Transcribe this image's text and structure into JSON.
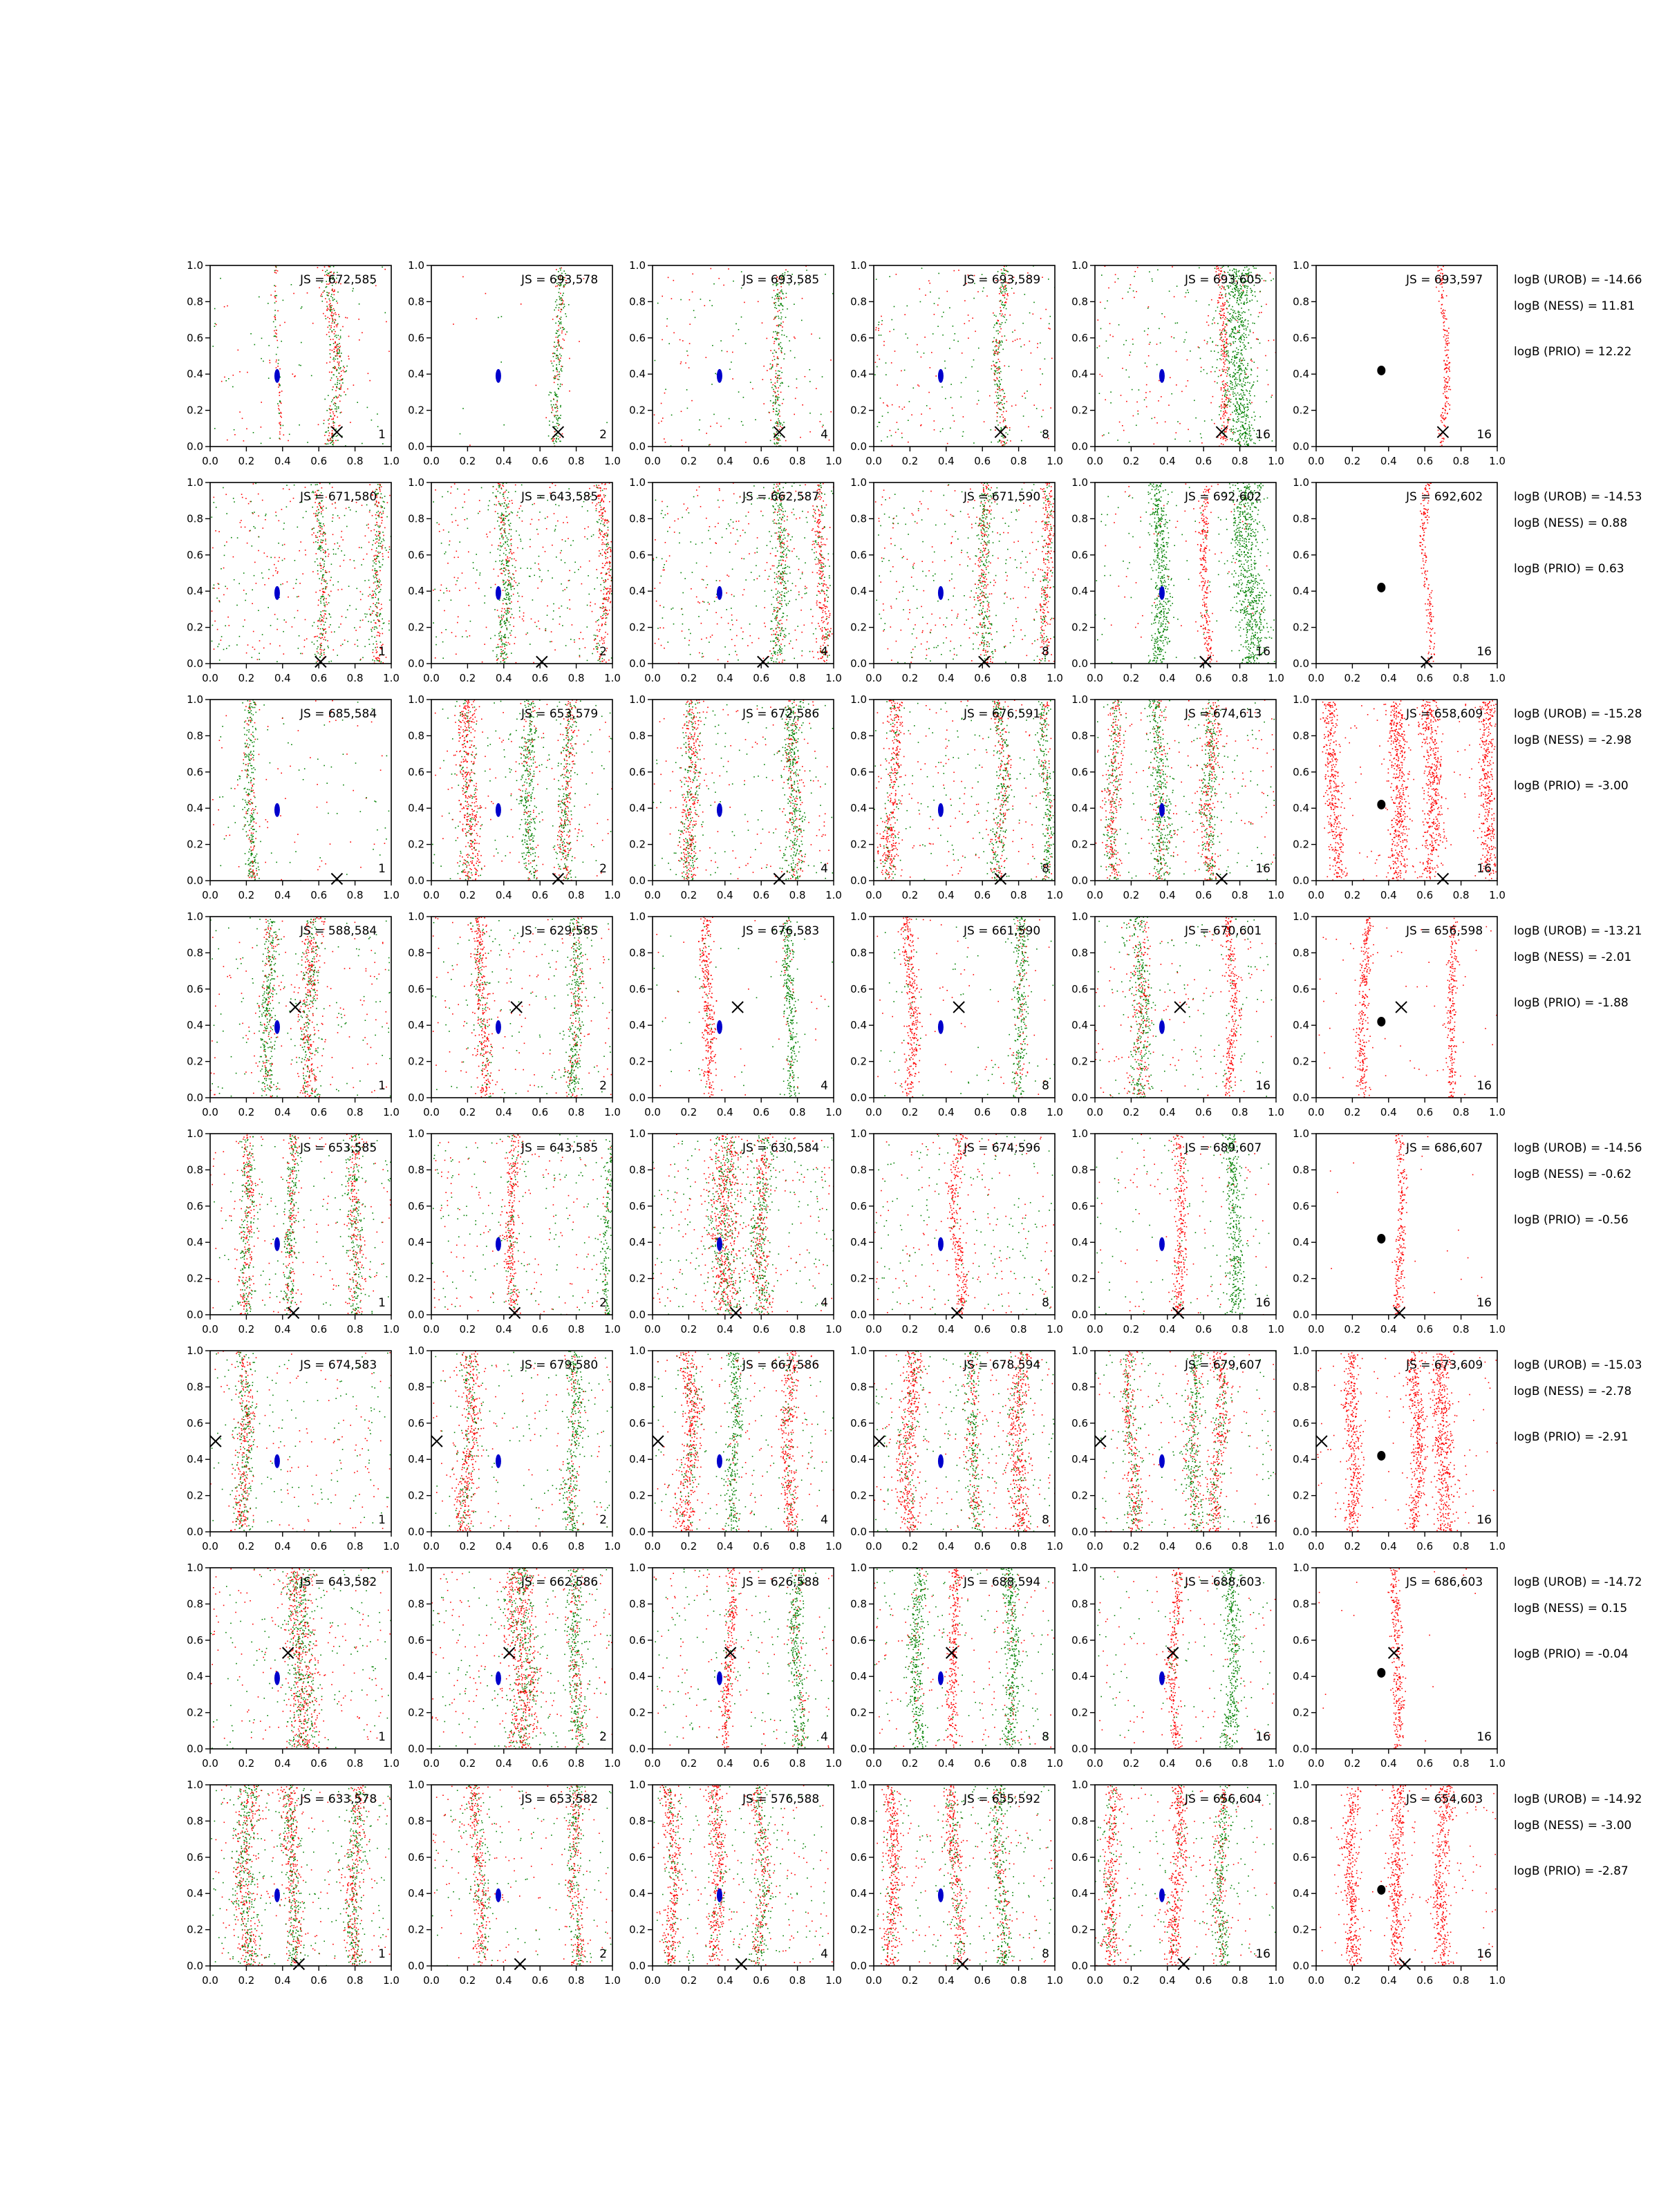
{
  "figure": {
    "tick_labels": [
      "0.0",
      "0.2",
      "0.4",
      "0.6",
      "0.8",
      "1.0"
    ],
    "colors": {
      "red_points": "#ff0000",
      "green_points": "#008000",
      "blue_cluster": "#0000cc",
      "black_cluster": "#000000",
      "frame": "#000000"
    },
    "point_size": "single-pixel dots",
    "marker_x_symbol": "x-marker"
  },
  "chart_data": [
    {
      "type": "scatter-grid-row",
      "row": 1,
      "x_marker": [
        0.7,
        0.08
      ],
      "panels": [
        {
          "js": "JS = 672,585",
          "n": "1",
          "bands": [
            {
              "x": 0.68,
              "w": 0.04,
              "mix": 0.5
            },
            {
              "x": 0.37,
              "w": 0.01,
              "mix": 0.5
            }
          ],
          "bg": 0.2
        },
        {
          "js": "JS = 693,578",
          "n": "2",
          "bands": [
            {
              "x": 0.7,
              "w": 0.03,
              "mix": 0.3
            }
          ],
          "bg": 0.03
        },
        {
          "js": "JS = 693,585",
          "n": "4",
          "bands": [
            {
              "x": 0.69,
              "w": 0.03,
              "mix": 0.35
            }
          ],
          "bg": 0.25
        },
        {
          "js": "JS = 693,589",
          "n": "8",
          "bands": [
            {
              "x": 0.7,
              "w": 0.03,
              "mix": 0.4
            }
          ],
          "bg": 0.4
        },
        {
          "js": "JS = 693,605",
          "n": "16",
          "bands": [
            {
              "x": 0.7,
              "w": 0.025,
              "mix": 0.95
            },
            {
              "x": 0.8,
              "w": 0.08,
              "mix": 0.0
            }
          ],
          "bg": 0.4
        },
        {
          "js": "JS = 693,597",
          "n": "16",
          "bands": [
            {
              "x": 0.7,
              "w": 0.02,
              "mix": 1.0
            }
          ],
          "bg": 0.0
        }
      ],
      "logB": [
        "logB (UROB) = -14.66",
        "logB (NESS) = 11.81",
        "logB (PRIO) = 12.22"
      ]
    },
    {
      "type": "scatter-grid-row",
      "row": 2,
      "x_marker": [
        0.61,
        0.01
      ],
      "panels": [
        {
          "js": "JS = 671,580",
          "n": "1",
          "bands": [
            {
              "x": 0.6,
              "w": 0.03,
              "mix": 0.5
            },
            {
              "x": 0.93,
              "w": 0.03,
              "mix": 0.5
            }
          ],
          "bg": 0.6
        },
        {
          "js": "JS = 643,585",
          "n": "2",
          "bands": [
            {
              "x": 0.4,
              "w": 0.04,
              "mix": 0.3
            },
            {
              "x": 0.95,
              "w": 0.03,
              "mix": 0.8
            }
          ],
          "bg": 0.6
        },
        {
          "js": "JS = 662,587",
          "n": "4",
          "bands": [
            {
              "x": 0.7,
              "w": 0.04,
              "mix": 0.3
            },
            {
              "x": 0.93,
              "w": 0.03,
              "mix": 0.8
            }
          ],
          "bg": 0.6
        },
        {
          "js": "JS = 671,590",
          "n": "8",
          "bands": [
            {
              "x": 0.62,
              "w": 0.04,
              "mix": 0.4
            },
            {
              "x": 0.95,
              "w": 0.03,
              "mix": 0.8
            }
          ],
          "bg": 0.6
        },
        {
          "js": "JS = 692,602",
          "n": "16",
          "bands": [
            {
              "x": 0.61,
              "w": 0.025,
              "mix": 0.95
            },
            {
              "x": 0.85,
              "w": 0.08,
              "mix": 0.0
            },
            {
              "x": 0.35,
              "w": 0.05,
              "mix": 0.0
            }
          ],
          "bg": 0.2
        },
        {
          "js": "JS = 692,602",
          "n": "16",
          "bands": [
            {
              "x": 0.61,
              "w": 0.02,
              "mix": 1.0
            }
          ],
          "bg": 0.0
        }
      ],
      "logB": [
        "logB (UROB) = -14.53",
        "logB (NESS) = 0.88",
        "logB (PRIO) = 0.63"
      ]
    },
    {
      "type": "scatter-grid-row",
      "row": 3,
      "x_marker": [
        0.7,
        0.01
      ],
      "panels": [
        {
          "js": "JS = 685,584",
          "n": "1",
          "bands": [
            {
              "x": 0.22,
              "w": 0.035,
              "mix": 0.3
            }
          ],
          "bg": 0.2
        },
        {
          "js": "JS = 653,579",
          "n": "2",
          "bands": [
            {
              "x": 0.2,
              "w": 0.05,
              "mix": 0.8
            },
            {
              "x": 0.55,
              "w": 0.04,
              "mix": 0.2
            },
            {
              "x": 0.75,
              "w": 0.04,
              "mix": 0.5
            }
          ],
          "bg": 0.4
        },
        {
          "js": "JS = 672,586",
          "n": "4",
          "bands": [
            {
              "x": 0.2,
              "w": 0.05,
              "mix": 0.6
            },
            {
              "x": 0.78,
              "w": 0.05,
              "mix": 0.3
            }
          ],
          "bg": 0.4
        },
        {
          "js": "JS = 676,591",
          "n": "8",
          "bands": [
            {
              "x": 0.1,
              "w": 0.04,
              "mix": 0.8
            },
            {
              "x": 0.7,
              "w": 0.04,
              "mix": 0.4
            },
            {
              "x": 0.95,
              "w": 0.03,
              "mix": 0.2
            }
          ],
          "bg": 0.5
        },
        {
          "js": "JS = 674,613",
          "n": "16",
          "bands": [
            {
              "x": 0.1,
              "w": 0.04,
              "mix": 0.6
            },
            {
              "x": 0.35,
              "w": 0.05,
              "mix": 0.2
            },
            {
              "x": 0.63,
              "w": 0.05,
              "mix": 0.5
            }
          ],
          "bg": 0.4
        },
        {
          "js": "JS = 658,609",
          "n": "16",
          "bands": [
            {
              "x": 0.1,
              "w": 0.04,
              "mix": 1.0
            },
            {
              "x": 0.45,
              "w": 0.05,
              "mix": 1.0
            },
            {
              "x": 0.63,
              "w": 0.05,
              "mix": 1.0
            },
            {
              "x": 0.95,
              "w": 0.04,
              "mix": 1.0
            }
          ],
          "bg": 0.2
        }
      ],
      "logB": [
        "logB (UROB) = -15.28",
        "logB (NESS) = -2.98",
        "logB (PRIO) = -3.00"
      ]
    },
    {
      "type": "scatter-grid-row",
      "row": 4,
      "x_marker": [
        0.47,
        0.5
      ],
      "panels": [
        {
          "js": "JS = 588,584",
          "n": "1",
          "bands": [
            {
              "x": 0.32,
              "w": 0.04,
              "mix": 0.3
            },
            {
              "x": 0.55,
              "w": 0.05,
              "mix": 0.5
            }
          ],
          "bg": 0.4
        },
        {
          "js": "JS = 629,585",
          "n": "2",
          "bands": [
            {
              "x": 0.28,
              "w": 0.04,
              "mix": 0.8
            },
            {
              "x": 0.78,
              "w": 0.04,
              "mix": 0.3
            }
          ],
          "bg": 0.4
        },
        {
          "js": "JS = 676,583",
          "n": "4",
          "bands": [
            {
              "x": 0.3,
              "w": 0.035,
              "mix": 0.95
            },
            {
              "x": 0.75,
              "w": 0.035,
              "mix": 0.1
            }
          ],
          "bg": 0.1
        },
        {
          "js": "JS = 661,590",
          "n": "8",
          "bands": [
            {
              "x": 0.2,
              "w": 0.035,
              "mix": 0.95
            },
            {
              "x": 0.8,
              "w": 0.035,
              "mix": 0.2
            }
          ],
          "bg": 0.2
        },
        {
          "js": "JS = 670,601",
          "n": "16",
          "bands": [
            {
              "x": 0.75,
              "w": 0.03,
              "mix": 0.95
            },
            {
              "x": 0.25,
              "w": 0.05,
              "mix": 0.4
            }
          ],
          "bg": 0.4
        },
        {
          "js": "JS = 656,598",
          "n": "16",
          "bands": [
            {
              "x": 0.75,
              "w": 0.025,
              "mix": 1.0
            },
            {
              "x": 0.27,
              "w": 0.03,
              "mix": 1.0
            }
          ],
          "bg": 0.1
        }
      ],
      "logB": [
        "logB (UROB) = -13.21",
        "logB (NESS) = -2.01",
        "logB (PRIO) = -1.88"
      ]
    },
    {
      "type": "scatter-grid-row",
      "row": 5,
      "x_marker": [
        0.46,
        0.01
      ],
      "panels": [
        {
          "js": "JS = 653,585",
          "n": "1",
          "bands": [
            {
              "x": 0.45,
              "w": 0.035,
              "mix": 0.4
            },
            {
              "x": 0.2,
              "w": 0.04,
              "mix": 0.5
            },
            {
              "x": 0.8,
              "w": 0.04,
              "mix": 0.5
            }
          ],
          "bg": 0.4
        },
        {
          "js": "JS = 643,585",
          "n": "2",
          "bands": [
            {
              "x": 0.45,
              "w": 0.035,
              "mix": 0.8
            },
            {
              "x": 0.98,
              "w": 0.02,
              "mix": 0.1
            }
          ],
          "bg": 0.5
        },
        {
          "js": "JS = 630,584",
          "n": "4",
          "bands": [
            {
              "x": 0.4,
              "w": 0.08,
              "mix": 0.6
            },
            {
              "x": 0.6,
              "w": 0.05,
              "mix": 0.5
            }
          ],
          "bg": 0.6
        },
        {
          "js": "JS = 674,596",
          "n": "8",
          "bands": [
            {
              "x": 0.46,
              "w": 0.03,
              "mix": 0.95
            }
          ],
          "bg": 0.5
        },
        {
          "js": "JS = 689,607",
          "n": "16",
          "bands": [
            {
              "x": 0.46,
              "w": 0.03,
              "mix": 0.95
            },
            {
              "x": 0.76,
              "w": 0.04,
              "mix": 0.0
            }
          ],
          "bg": 0.3
        },
        {
          "js": "JS = 686,607",
          "n": "16",
          "bands": [
            {
              "x": 0.46,
              "w": 0.025,
              "mix": 1.0
            }
          ],
          "bg": 0.03
        }
      ],
      "logB": [
        "logB (UROB) = -14.56",
        "logB (NESS) = -0.62",
        "logB (PRIO) = -0.56"
      ]
    },
    {
      "type": "scatter-grid-row",
      "row": 6,
      "x_marker": [
        0.03,
        0.5
      ],
      "panels": [
        {
          "js": "JS = 674,583",
          "n": "1",
          "bands": [
            {
              "x": 0.18,
              "w": 0.05,
              "mix": 0.5
            }
          ],
          "bg": 0.4
        },
        {
          "js": "JS = 679,580",
          "n": "2",
          "bands": [
            {
              "x": 0.2,
              "w": 0.05,
              "mix": 0.7
            },
            {
              "x": 0.78,
              "w": 0.04,
              "mix": 0.2
            }
          ],
          "bg": 0.4
        },
        {
          "js": "JS = 667,586",
          "n": "4",
          "bands": [
            {
              "x": 0.45,
              "w": 0.035,
              "mix": 0.1
            },
            {
              "x": 0.2,
              "w": 0.05,
              "mix": 0.8
            },
            {
              "x": 0.75,
              "w": 0.04,
              "mix": 0.8
            }
          ],
          "bg": 0.4
        },
        {
          "js": "JS = 678,594",
          "n": "8",
          "bands": [
            {
              "x": 0.55,
              "w": 0.035,
              "mix": 0.4
            },
            {
              "x": 0.2,
              "w": 0.05,
              "mix": 0.8
            },
            {
              "x": 0.8,
              "w": 0.05,
              "mix": 0.8
            }
          ],
          "bg": 0.5
        },
        {
          "js": "JS = 679,607",
          "n": "16",
          "bands": [
            {
              "x": 0.2,
              "w": 0.04,
              "mix": 0.6
            },
            {
              "x": 0.55,
              "w": 0.04,
              "mix": 0.3
            },
            {
              "x": 0.68,
              "w": 0.04,
              "mix": 0.7
            }
          ],
          "bg": 0.4
        },
        {
          "js": "JS = 673,609",
          "n": "16",
          "bands": [
            {
              "x": 0.2,
              "w": 0.04,
              "mix": 1.0
            },
            {
              "x": 0.55,
              "w": 0.04,
              "mix": 1.0
            },
            {
              "x": 0.7,
              "w": 0.05,
              "mix": 1.0
            }
          ],
          "bg": 0.2
        }
      ],
      "logB": [
        "logB (UROB) = -15.03",
        "logB (NESS) = -2.78",
        "logB (PRIO) = -2.91"
      ]
    },
    {
      "type": "scatter-grid-row",
      "row": 7,
      "x_marker": [
        0.43,
        0.53
      ],
      "panels": [
        {
          "js": "JS = 643,582",
          "n": "1",
          "bands": [
            {
              "x": 0.5,
              "w": 0.08,
              "mix": 0.5
            }
          ],
          "bg": 0.5
        },
        {
          "js": "JS = 662,586",
          "n": "2",
          "bands": [
            {
              "x": 0.5,
              "w": 0.08,
              "mix": 0.6
            },
            {
              "x": 0.8,
              "w": 0.04,
              "mix": 0.3
            }
          ],
          "bg": 0.5
        },
        {
          "js": "JS = 626,588",
          "n": "4",
          "bands": [
            {
              "x": 0.42,
              "w": 0.03,
              "mix": 0.9
            },
            {
              "x": 0.8,
              "w": 0.04,
              "mix": 0.2
            }
          ],
          "bg": 0.4
        },
        {
          "js": "JS = 688,594",
          "n": "8",
          "bands": [
            {
              "x": 0.44,
              "w": 0.03,
              "mix": 0.95
            },
            {
              "x": 0.25,
              "w": 0.04,
              "mix": 0.1
            },
            {
              "x": 0.75,
              "w": 0.04,
              "mix": 0.1
            }
          ],
          "bg": 0.4
        },
        {
          "js": "JS = 688,603",
          "n": "16",
          "bands": [
            {
              "x": 0.44,
              "w": 0.03,
              "mix": 0.95
            },
            {
              "x": 0.75,
              "w": 0.04,
              "mix": 0.0
            }
          ],
          "bg": 0.3
        },
        {
          "js": "JS = 686,603",
          "n": "16",
          "bands": [
            {
              "x": 0.44,
              "w": 0.03,
              "mix": 1.0
            }
          ],
          "bg": 0.03
        }
      ],
      "logB": [
        "logB (UROB) = -14.72",
        "logB (NESS) = 0.15",
        "logB (PRIO) = -0.04"
      ]
    },
    {
      "type": "scatter-grid-row",
      "row": 8,
      "x_marker": [
        0.49,
        0.01
      ],
      "panels": [
        {
          "js": "JS = 633,578",
          "n": "1",
          "bands": [
            {
              "x": 0.2,
              "w": 0.06,
              "mix": 0.5
            },
            {
              "x": 0.45,
              "w": 0.05,
              "mix": 0.5
            },
            {
              "x": 0.8,
              "w": 0.05,
              "mix": 0.5
            }
          ],
          "bg": 0.5
        },
        {
          "js": "JS = 653,582",
          "n": "2",
          "bands": [
            {
              "x": 0.25,
              "w": 0.04,
              "mix": 0.6
            },
            {
              "x": 0.8,
              "w": 0.04,
              "mix": 0.5
            }
          ],
          "bg": 0.4
        },
        {
          "js": "JS = 576,588",
          "n": "4",
          "bands": [
            {
              "x": 0.1,
              "w": 0.04,
              "mix": 0.8
            },
            {
              "x": 0.35,
              "w": 0.04,
              "mix": 0.8
            },
            {
              "x": 0.6,
              "w": 0.04,
              "mix": 0.5
            }
          ],
          "bg": 0.5
        },
        {
          "js": "JS = 655,592",
          "n": "8",
          "bands": [
            {
              "x": 0.1,
              "w": 0.04,
              "mix": 0.9
            },
            {
              "x": 0.45,
              "w": 0.04,
              "mix": 0.7
            },
            {
              "x": 0.7,
              "w": 0.04,
              "mix": 0.3
            }
          ],
          "bg": 0.5
        },
        {
          "js": "JS = 656,604",
          "n": "16",
          "bands": [
            {
              "x": 0.1,
              "w": 0.04,
              "mix": 0.8
            },
            {
              "x": 0.45,
              "w": 0.04,
              "mix": 0.9
            },
            {
              "x": 0.7,
              "w": 0.04,
              "mix": 0.3
            }
          ],
          "bg": 0.4
        },
        {
          "js": "JS = 654,603",
          "n": "16",
          "bands": [
            {
              "x": 0.2,
              "w": 0.04,
              "mix": 1.0
            },
            {
              "x": 0.45,
              "w": 0.04,
              "mix": 1.0
            },
            {
              "x": 0.7,
              "w": 0.04,
              "mix": 1.0
            }
          ],
          "bg": 0.2
        }
      ],
      "logB": [
        "logB (UROB) = -14.92",
        "logB (NESS) = -3.00",
        "logB (PRIO) = -2.87"
      ]
    }
  ]
}
